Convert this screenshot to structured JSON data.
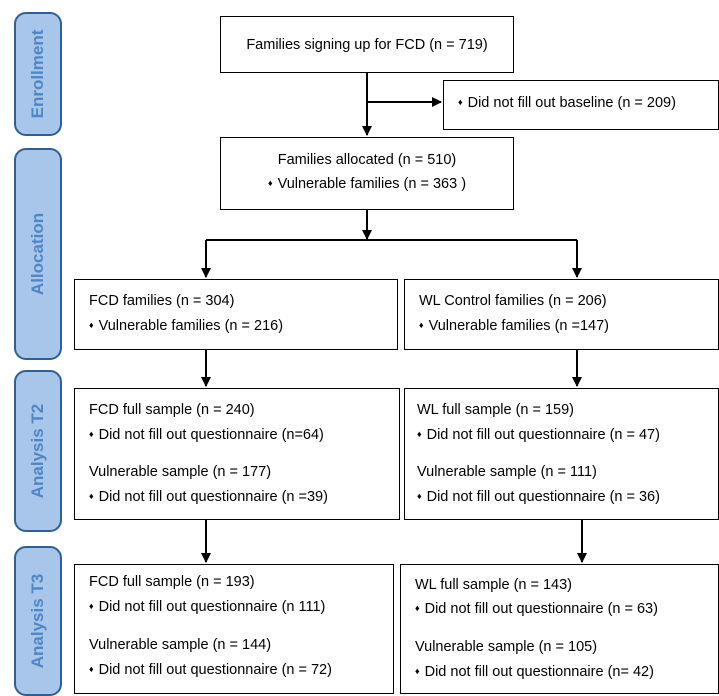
{
  "stages": [
    {
      "label": "Enrollment"
    },
    {
      "label": "Allocation"
    },
    {
      "label": "Analysis T2"
    },
    {
      "label": "Analysis T3"
    }
  ],
  "bullet_glyph": "♦",
  "boxes": {
    "signup": {
      "title": "Families signing up for FCD (n = 719)"
    },
    "excluded": {
      "text": "Did not fill out baseline (n = 209)"
    },
    "allocated": {
      "title": "Families allocated (n = 510)",
      "bullet": "Vulnerable families (n = 363 )"
    },
    "fcd_alloc": {
      "title": "FCD families (n = 304)",
      "bullet": "Vulnerable families (n = 216)"
    },
    "wl_alloc": {
      "title": "WL Control families (n = 206)",
      "bullet": "Vulnerable families (n =147)"
    },
    "fcd_t2": {
      "full_title": "FCD full sample (n = 240)",
      "full_bullet": "Did not fill out questionnaire (n=64)",
      "vuln_title": "Vulnerable sample (n = 177)",
      "vuln_bullet": "Did not fill out questionnaire (n =39)"
    },
    "wl_t2": {
      "full_title": "WL full sample (n = 159)",
      "full_bullet": "Did not fill out questionnaire (n = 47)",
      "vuln_title": "Vulnerable sample (n = 111)",
      "vuln_bullet": "Did not fill out questionnaire (n = 36)"
    },
    "fcd_t3": {
      "full_title": "FCD full sample (n = 193)",
      "full_bullet": "Did not fill out questionnaire (n  111)",
      "vuln_title": "Vulnerable sample (n = 144)",
      "vuln_bullet": "Did not fill out questionnaire (n = 72)"
    },
    "wl_t3": {
      "full_title": "WL full sample (n = 143)",
      "full_bullet": "Did not fill out questionnaire (n = 63)",
      "vuln_title": "Vulnerable sample (n = 105)",
      "vuln_bullet": "Did not fill out questionnaire (n= 42)"
    }
  }
}
